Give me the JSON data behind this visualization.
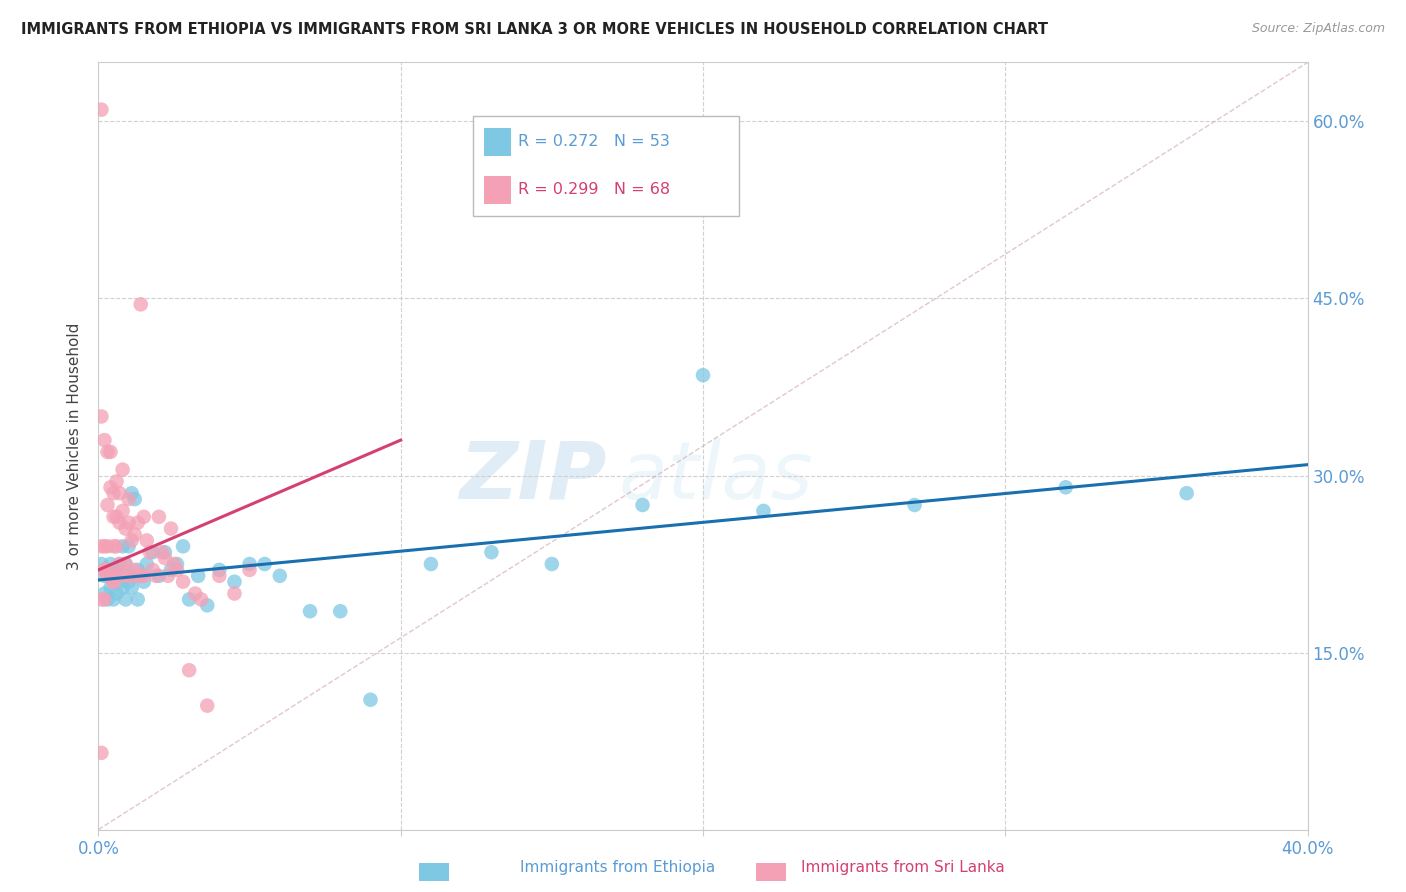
{
  "title": "IMMIGRANTS FROM ETHIOPIA VS IMMIGRANTS FROM SRI LANKA 3 OR MORE VEHICLES IN HOUSEHOLD CORRELATION CHART",
  "source": "Source: ZipAtlas.com",
  "ylabel": "3 or more Vehicles in Household",
  "xlabel_ethiopia": "Immigrants from Ethiopia",
  "xlabel_srilanka": "Immigrants from Sri Lanka",
  "xlim": [
    0.0,
    0.4
  ],
  "ylim": [
    0.0,
    0.65
  ],
  "xticks": [
    0.0,
    0.1,
    0.2,
    0.3,
    0.4
  ],
  "yticks": [
    0.0,
    0.15,
    0.3,
    0.45,
    0.6
  ],
  "xtick_labels": [
    "0.0%",
    "",
    "",
    "",
    "40.0%"
  ],
  "ytick_labels_right": [
    "",
    "15.0%",
    "30.0%",
    "45.0%",
    "60.0%"
  ],
  "R_ethiopia": 0.272,
  "N_ethiopia": 53,
  "R_srilanka": 0.299,
  "N_srilanka": 68,
  "color_ethiopia": "#7ec8e3",
  "color_srilanka": "#f4a0b5",
  "color_ethiopia_line": "#1a6faf",
  "color_srilanka_line": "#d44070",
  "watermark_zip": "ZIP",
  "watermark_atlas": "atlas",
  "ethiopia_x": [
    0.001,
    0.002,
    0.002,
    0.003,
    0.003,
    0.004,
    0.004,
    0.005,
    0.005,
    0.006,
    0.006,
    0.007,
    0.007,
    0.008,
    0.008,
    0.009,
    0.009,
    0.01,
    0.01,
    0.011,
    0.011,
    0.012,
    0.013,
    0.013,
    0.014,
    0.015,
    0.016,
    0.018,
    0.02,
    0.022,
    0.024,
    0.026,
    0.028,
    0.03,
    0.033,
    0.036,
    0.04,
    0.045,
    0.05,
    0.055,
    0.06,
    0.07,
    0.08,
    0.09,
    0.11,
    0.13,
    0.15,
    0.18,
    0.2,
    0.22,
    0.27,
    0.32,
    0.36
  ],
  "ethiopia_y": [
    0.225,
    0.215,
    0.2,
    0.22,
    0.195,
    0.225,
    0.205,
    0.215,
    0.195,
    0.22,
    0.2,
    0.225,
    0.21,
    0.24,
    0.205,
    0.195,
    0.225,
    0.24,
    0.21,
    0.205,
    0.285,
    0.28,
    0.195,
    0.22,
    0.215,
    0.21,
    0.225,
    0.235,
    0.215,
    0.235,
    0.22,
    0.225,
    0.24,
    0.195,
    0.215,
    0.19,
    0.22,
    0.21,
    0.225,
    0.225,
    0.215,
    0.185,
    0.185,
    0.11,
    0.225,
    0.235,
    0.225,
    0.275,
    0.385,
    0.27,
    0.275,
    0.29,
    0.285
  ],
  "srilanka_x": [
    0.001,
    0.001,
    0.001,
    0.001,
    0.002,
    0.002,
    0.002,
    0.002,
    0.003,
    0.003,
    0.003,
    0.003,
    0.004,
    0.004,
    0.004,
    0.005,
    0.005,
    0.005,
    0.005,
    0.006,
    0.006,
    0.006,
    0.006,
    0.007,
    0.007,
    0.007,
    0.008,
    0.008,
    0.008,
    0.009,
    0.009,
    0.01,
    0.01,
    0.01,
    0.011,
    0.011,
    0.012,
    0.012,
    0.013,
    0.013,
    0.014,
    0.014,
    0.015,
    0.015,
    0.016,
    0.017,
    0.018,
    0.019,
    0.02,
    0.021,
    0.022,
    0.023,
    0.024,
    0.025,
    0.026,
    0.028,
    0.03,
    0.032,
    0.034,
    0.036,
    0.04,
    0.045,
    0.05,
    0.001,
    0.002,
    0.003,
    0.004,
    0.005
  ],
  "srilanka_y": [
    0.61,
    0.35,
    0.24,
    0.195,
    0.33,
    0.24,
    0.22,
    0.195,
    0.32,
    0.275,
    0.24,
    0.22,
    0.32,
    0.29,
    0.215,
    0.285,
    0.265,
    0.24,
    0.21,
    0.295,
    0.265,
    0.24,
    0.215,
    0.285,
    0.26,
    0.225,
    0.305,
    0.27,
    0.215,
    0.255,
    0.225,
    0.28,
    0.26,
    0.215,
    0.245,
    0.215,
    0.25,
    0.22,
    0.26,
    0.215,
    0.445,
    0.215,
    0.265,
    0.215,
    0.245,
    0.235,
    0.22,
    0.215,
    0.265,
    0.235,
    0.23,
    0.215,
    0.255,
    0.225,
    0.22,
    0.21,
    0.135,
    0.2,
    0.195,
    0.105,
    0.215,
    0.2,
    0.22,
    0.065,
    0.22,
    0.215,
    0.215,
    0.21
  ]
}
